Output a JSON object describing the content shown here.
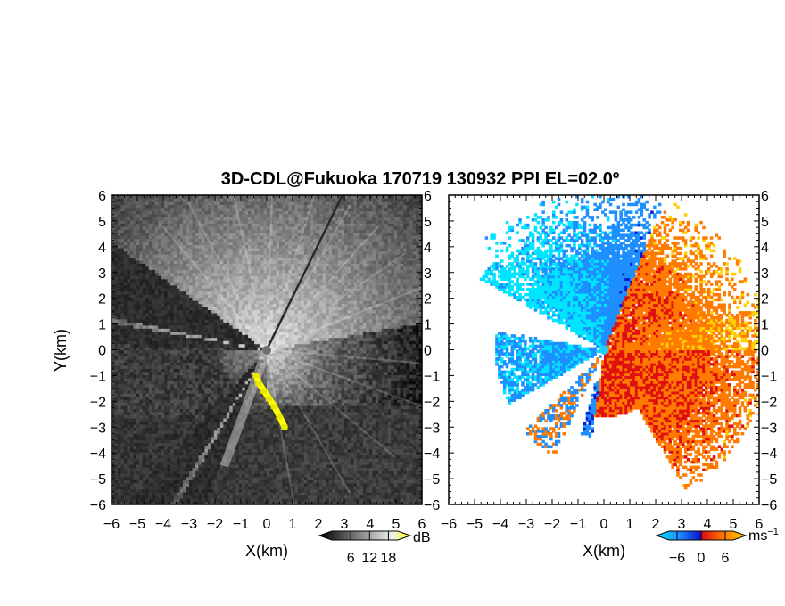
{
  "figure": {
    "title": "3D-CDL@Fukuoka 170719 130932 PPI EL=02.0º"
  },
  "chart_data": [
    {
      "type": "heatmap",
      "name": "backscatter-intensity",
      "xlabel": "X(km)",
      "ylabel": "Y(km)",
      "xlim": [
        -6,
        6
      ],
      "ylim": [
        -6,
        6
      ],
      "x_ticks": [
        "-6",
        "-5",
        "-4",
        "-3",
        "-2",
        "-1",
        "0",
        "1",
        "2",
        "3",
        "4",
        "5",
        "6"
      ],
      "y_ticks": [
        "-6",
        "-5",
        "-4",
        "-3",
        "-2",
        "-1",
        "0",
        "1",
        "2",
        "3",
        "4",
        "5",
        "6"
      ],
      "colorbar": {
        "unit": "dB",
        "ticks": [
          "6",
          "12",
          "18"
        ],
        "range": [
          0,
          21
        ],
        "colors": [
          "#000000",
          "#ffffff",
          "#ffff00"
        ]
      },
      "beam_blocks_deg": [
        [
          145,
          168
        ],
        [
          170,
          178
        ],
        [
          228,
          238
        ],
        [
          240,
          248
        ]
      ],
      "highlight_cells": [
        [
          -0.4,
          -1.0
        ],
        [
          -0.3,
          -1.3
        ],
        [
          -0.1,
          -1.6
        ],
        [
          0.1,
          -1.9
        ],
        [
          0.3,
          -2.2
        ],
        [
          0.5,
          -2.6
        ],
        [
          0.7,
          -3.0
        ]
      ]
    },
    {
      "type": "heatmap",
      "name": "radial-velocity",
      "xlabel": "X(km)",
      "ylabel": "Y(km)",
      "xlim": [
        -6,
        6
      ],
      "ylim": [
        -6,
        6
      ],
      "x_ticks": [
        "-6",
        "-5",
        "-4",
        "-3",
        "-2",
        "-1",
        "0",
        "1",
        "2",
        "3",
        "4",
        "5",
        "6"
      ],
      "y_ticks": [
        "-6",
        "-5",
        "-4",
        "-3",
        "-2",
        "-1",
        "0",
        "1",
        "2",
        "3",
        "4",
        "5",
        "6"
      ],
      "colorbar": {
        "unit": "ms",
        "unit_sup": "−1",
        "ticks": [
          "−6",
          "0",
          "6"
        ],
        "range": [
          -8,
          8
        ],
        "colors": [
          "#00e5ff",
          "#1e8fff",
          "#0a18d0",
          "#e01010",
          "#ff7a00",
          "#ffd000"
        ]
      },
      "sector_deg": [
        15,
        140
      ],
      "sector_radius_km": 6.2
    }
  ]
}
